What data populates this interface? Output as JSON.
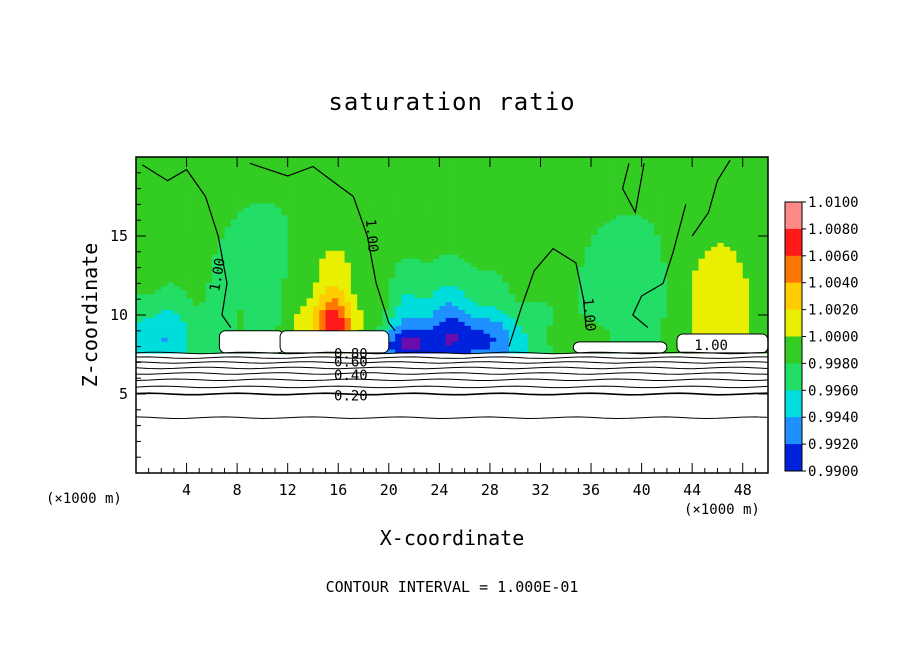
{
  "chart_data": {
    "type": "heatmap",
    "title": "saturation ratio",
    "xlabel": "X-coordinate",
    "ylabel": "Z-coordinate",
    "x_unit": "(×1000 m)",
    "footer": "CONTOUR INTERVAL = 1.000E-01",
    "xlim": [
      0,
      50
    ],
    "ylim": [
      0,
      20
    ],
    "x_ticks": [
      4,
      8,
      12,
      16,
      20,
      24,
      28,
      32,
      36,
      40,
      44,
      48
    ],
    "x_tick_labels": [
      "4",
      "8",
      "12",
      "16",
      "20",
      "24",
      "28",
      "32",
      "36",
      "40",
      "44",
      "48"
    ],
    "y_ticks": [
      5,
      10,
      15
    ],
    "y_tick_labels": [
      "5",
      "10",
      "15"
    ],
    "colorbar": {
      "labels": [
        "1.0100",
        "1.0080",
        "1.0060",
        "1.0040",
        "1.0020",
        "1.0000",
        "0.9980",
        "0.9960",
        "0.9940",
        "0.9920",
        "0.9900"
      ],
      "colors": [
        "#ff8888",
        "#ff1a1a",
        "#ff7700",
        "#ffcc00",
        "#e8ef00",
        "#33cc22",
        "#22dd66",
        "#00dddd",
        "#1e90ff",
        "#0022dd",
        "#6a0dad"
      ]
    },
    "contour_labels": [
      {
        "text": "1.00",
        "x": 6.8,
        "z": 12.5,
        "rot": -80
      },
      {
        "text": "1.00",
        "x": 18.3,
        "z": 15.0,
        "rot": 85
      },
      {
        "text": "1.00",
        "x": 35.5,
        "z": 10.0,
        "rot": 85
      },
      {
        "text": "1.00",
        "x": 45.5,
        "z": 7.8,
        "rot": 0
      },
      {
        "text": "0.80",
        "x": 17.0,
        "z": 7.25,
        "rot": 0
      },
      {
        "text": "0.60",
        "x": 17.0,
        "z": 6.75,
        "rot": 0
      },
      {
        "text": "0.40",
        "x": 17.0,
        "z": 5.9,
        "rot": 0
      },
      {
        "text": "0.20",
        "x": 17.0,
        "z": 4.6,
        "rot": 0
      }
    ],
    "low_level_contours": [
      7.6,
      7.3,
      7.0,
      6.65,
      6.3,
      5.9,
      5.45,
      5.0,
      3.5
    ]
  }
}
